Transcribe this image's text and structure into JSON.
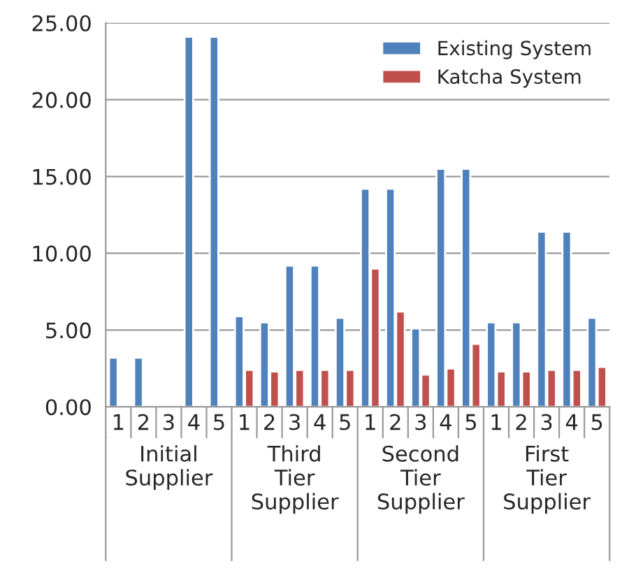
{
  "chart_data": {
    "type": "bar",
    "categories": [
      "1",
      "2",
      "3",
      "4",
      "5",
      "1",
      "2",
      "3",
      "4",
      "5",
      "1",
      "2",
      "3",
      "4",
      "5",
      "1",
      "2",
      "3",
      "4",
      "5"
    ],
    "series": [
      {
        "name": "Existing System",
        "color": "#4f81bd",
        "values": [
          3.2,
          3.2,
          0.1,
          24.1,
          24.1,
          5.9,
          5.5,
          9.2,
          9.2,
          5.8,
          14.2,
          14.2,
          5.1,
          15.5,
          15.5,
          5.5,
          5.5,
          11.4,
          11.4,
          5.8
        ]
      },
      {
        "name": "Katcha System",
        "color": "#c0504d",
        "values": [
          0.1,
          0.1,
          0.1,
          0.1,
          0.1,
          2.4,
          2.3,
          2.4,
          2.4,
          2.4,
          9.0,
          6.2,
          2.1,
          2.5,
          4.1,
          2.3,
          2.3,
          2.4,
          2.4,
          2.6
        ]
      }
    ],
    "annotations": [
      "Initial Supplier",
      "Third Tier Supplier",
      "Second Tier Supplier",
      "First Tier Supplier"
    ],
    "ylim": [
      0,
      25
    ],
    "yticks": [
      {
        "value": 0,
        "label": "0.00"
      },
      {
        "value": 5,
        "label": "5.00"
      },
      {
        "value": 10,
        "label": "10.00"
      },
      {
        "value": 15,
        "label": "15.00"
      },
      {
        "value": 20,
        "label": "20.00"
      },
      {
        "value": 25,
        "label": "25.00"
      }
    ],
    "grid": "y",
    "legend": "top right"
  }
}
